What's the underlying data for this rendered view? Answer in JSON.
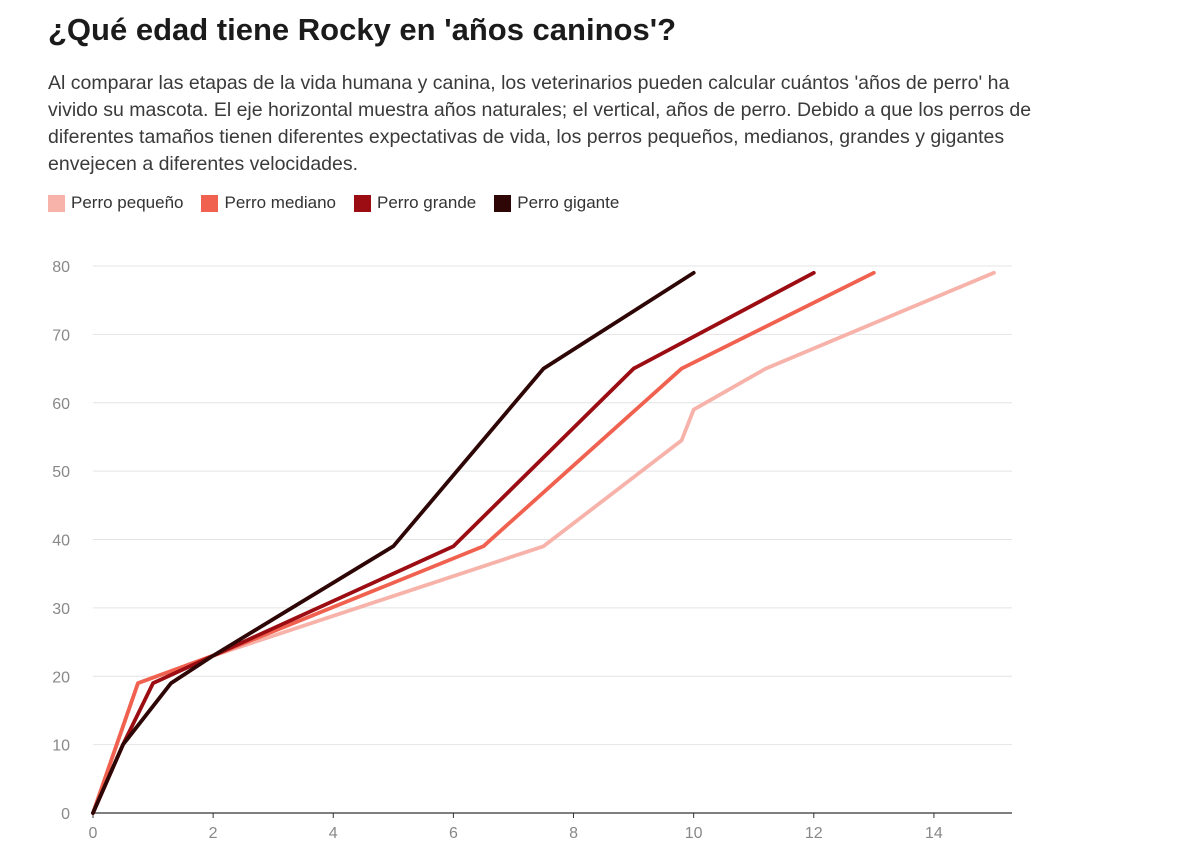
{
  "title": "¿Qué edad tiene Rocky en 'años caninos'?",
  "subtitle": "Al comparar las etapas de la vida humana y canina, los veterinarios pueden calcular cuántos 'años de perro' ha vivido su mascota. El eje horizontal muestra años naturales; el vertical, años de perro. Debido a que los perros de diferentes tamaños tienen diferentes expectativas de vida, los perros pequeños, medianos, grandes y gigantes envejecen a diferentes velocidades.",
  "chart_data": {
    "type": "line",
    "title": "¿Qué edad tiene Rocky en 'años caninos'?",
    "xlabel": "",
    "ylabel": "",
    "xlim": [
      0,
      15.3
    ],
    "ylim": [
      0,
      80
    ],
    "x_ticks": [
      0,
      2,
      4,
      6,
      8,
      10,
      12,
      14
    ],
    "y_ticks": [
      0,
      10,
      20,
      30,
      40,
      50,
      60,
      70,
      80
    ],
    "grid": "horizontal",
    "legend_position": "top-left",
    "series": [
      {
        "name": "Perro pequeño",
        "color": "#f7b2aa",
        "points": [
          [
            0,
            0
          ],
          [
            0.75,
            19
          ],
          [
            2,
            23
          ],
          [
            7.5,
            39
          ],
          [
            9.8,
            54.5
          ],
          [
            10,
            59
          ],
          [
            11.2,
            65
          ],
          [
            15,
            79
          ]
        ]
      },
      {
        "name": "Perro mediano",
        "color": "#f0614f",
        "points": [
          [
            0,
            0
          ],
          [
            0.75,
            19
          ],
          [
            2,
            23
          ],
          [
            6.5,
            39
          ],
          [
            9.8,
            65
          ],
          [
            13,
            79
          ]
        ]
      },
      {
        "name": "Perro grande",
        "color": "#9b0d12",
        "points": [
          [
            0,
            0
          ],
          [
            0.5,
            10
          ],
          [
            1,
            19
          ],
          [
            2,
            23
          ],
          [
            6,
            39
          ],
          [
            9,
            65
          ],
          [
            12,
            79
          ]
        ]
      },
      {
        "name": "Perro gigante",
        "color": "#2e0606",
        "points": [
          [
            0,
            0
          ],
          [
            0.5,
            10
          ],
          [
            1.3,
            19
          ],
          [
            2,
            23
          ],
          [
            5,
            39
          ],
          [
            7.5,
            65
          ],
          [
            10,
            79
          ]
        ]
      }
    ]
  }
}
